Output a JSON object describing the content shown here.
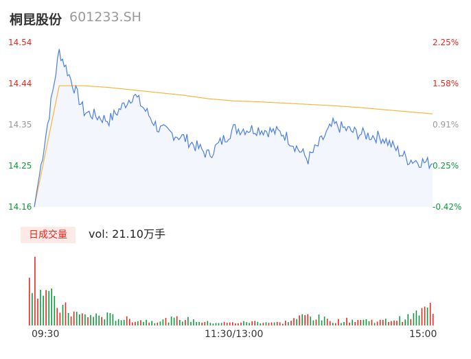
{
  "header": {
    "name": "桐昆股份",
    "code": "601233.SH"
  },
  "price_axis": {
    "left_ticks": [
      "14.54",
      "14.44",
      "14.35",
      "14.25",
      "14.16"
    ],
    "right_ticks": [
      "2.25%",
      "1.58%",
      "0.91%",
      "0.25%",
      "-0.42%"
    ],
    "colors": [
      "#e8261b",
      "#e8261b",
      "#999999",
      "#0a9b38",
      "#0a9b38"
    ]
  },
  "volume": {
    "badge": "日成交量",
    "summary": "vol: 21.10万手"
  },
  "time_axis": [
    "09:30",
    "11:30/13:00",
    "15:00"
  ],
  "colors": {
    "price_line": "#4a7ee0",
    "avg_line": "#f5b53c",
    "up": "#e8261b",
    "down": "#0a9b38",
    "area": "#f3f6fc"
  },
  "chart_data": [
    {
      "type": "line",
      "title": "",
      "ylim": [
        14.16,
        14.54
      ],
      "x": [
        "09:30",
        "09:45",
        "10:00",
        "10:15",
        "10:30",
        "10:45",
        "11:00",
        "11:15",
        "11:30/13:00",
        "13:15",
        "13:30",
        "13:45",
        "14:00",
        "14:15",
        "14:30",
        "14:45",
        "15:00"
      ],
      "series": [
        {
          "name": "",
          "role": "price",
          "values": [
            14.16,
            14.52,
            14.38,
            14.36,
            14.42,
            14.34,
            14.32,
            14.28,
            14.34,
            14.34,
            14.33,
            14.27,
            14.35,
            14.33,
            14.32,
            14.27,
            14.26
          ]
        },
        {
          "name": "",
          "role": "average",
          "values": [
            14.16,
            14.44,
            14.44,
            14.436,
            14.43,
            14.424,
            14.418,
            14.41,
            14.405,
            14.403,
            14.4,
            14.397,
            14.394,
            14.39,
            14.385,
            14.38,
            14.375
          ]
        }
      ]
    },
    {
      "type": "bar",
      "title": "",
      "x": [
        "09:30",
        "09:45",
        "10:00",
        "10:15",
        "10:30",
        "10:45",
        "11:00",
        "11:15",
        "11:30/13:00",
        "13:15",
        "13:30",
        "13:45",
        "14:00",
        "14:15",
        "14:30",
        "14:45",
        "15:00"
      ],
      "values": [
        10500,
        3200,
        1600,
        1500,
        900,
        700,
        1100,
        500,
        400,
        600,
        400,
        1600,
        700,
        900,
        700,
        1200,
        3000
      ],
      "directions": [
        "up",
        "down",
        "up",
        "down",
        "up",
        "down",
        "down",
        "up",
        "up",
        "down",
        "up",
        "down",
        "up",
        "down",
        "up",
        "down",
        "up"
      ]
    }
  ]
}
